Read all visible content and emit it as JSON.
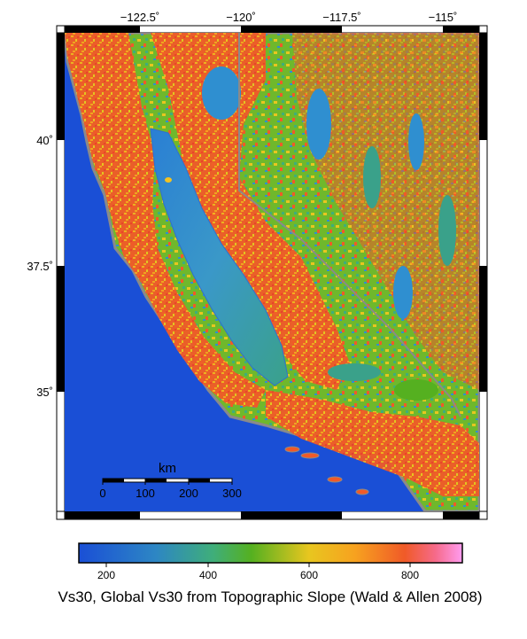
{
  "map": {
    "lon_labels": [
      "−122.5˚",
      "−120˚",
      "−117.5˚",
      "−115˚"
    ],
    "lat_labels": [
      "40˚",
      "37.5˚",
      "35˚"
    ],
    "scale_bar": {
      "unit": "km",
      "ticks": [
        "0",
        "100",
        "200",
        "300"
      ]
    }
  },
  "colorbar": {
    "ticks": [
      "200",
      "400",
      "600",
      "800"
    ],
    "title": "Vs30, Global Vs30 from Topographic Slope (Wald & Allen 2008)",
    "colors": {
      "low": "#1a4fd6",
      "mid_low": "#3fa3b8",
      "mid": "#55b020",
      "mid_high": "#f5c322",
      "high": "#f05a28",
      "max": "#ff8ee6"
    }
  },
  "colors": {
    "ocean": "#1a4fd6",
    "coast": "#8a8a8a",
    "valley": "#2f8fd0",
    "mountain": "#f05a28"
  }
}
